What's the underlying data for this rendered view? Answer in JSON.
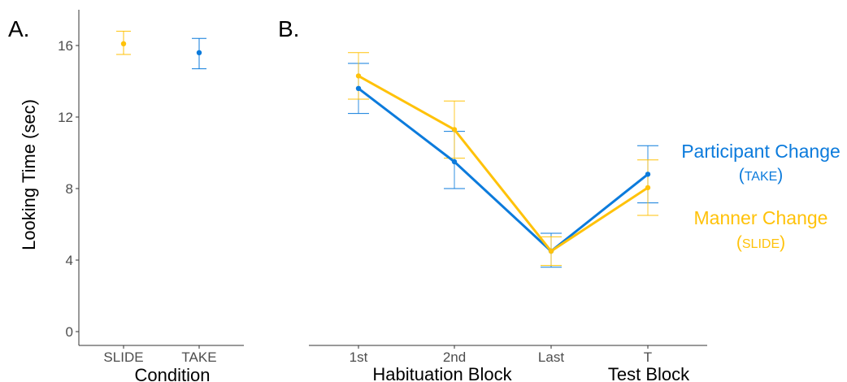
{
  "panels": {
    "a": {
      "label": "A."
    },
    "b": {
      "label": "B."
    }
  },
  "chart_data": [
    {
      "type": "scatter",
      "panel": "A.",
      "xlabel": "Condition",
      "ylabel": "Looking Time (sec)",
      "categories": [
        "SLIDE",
        "TAKE"
      ],
      "ylim": [
        0,
        18
      ],
      "yticks": [
        0,
        4,
        8,
        12,
        16
      ],
      "grid": false,
      "points": [
        {
          "category": "SLIDE",
          "value": 16.1,
          "lower": 15.5,
          "upper": 16.8,
          "color": "#FFC20A"
        },
        {
          "category": "TAKE",
          "value": 15.6,
          "lower": 14.7,
          "upper": 16.4,
          "color": "#0C7BDC"
        }
      ]
    },
    {
      "type": "line",
      "panel": "B.",
      "xlabel_groups": [
        "Habituation Block",
        "Test Block"
      ],
      "categories": [
        "1st",
        "2nd",
        "Last",
        "T"
      ],
      "ylim": [
        0,
        18
      ],
      "grid": false,
      "legend_position": "right",
      "series": [
        {
          "name": "Participant Change",
          "condition": "TAKE",
          "color": "#0C7BDC",
          "values": [
            13.6,
            9.5,
            4.5,
            8.8
          ],
          "lower": [
            12.2,
            8.0,
            3.6,
            7.2
          ],
          "upper": [
            15.0,
            11.2,
            5.5,
            10.4
          ]
        },
        {
          "name": "Manner Change",
          "condition": "SLIDE",
          "color": "#FFC20A",
          "values": [
            14.3,
            11.3,
            4.5,
            8.05
          ],
          "lower": [
            13.0,
            9.7,
            3.7,
            6.5
          ],
          "upper": [
            15.6,
            12.9,
            5.3,
            9.6
          ]
        }
      ]
    }
  ]
}
